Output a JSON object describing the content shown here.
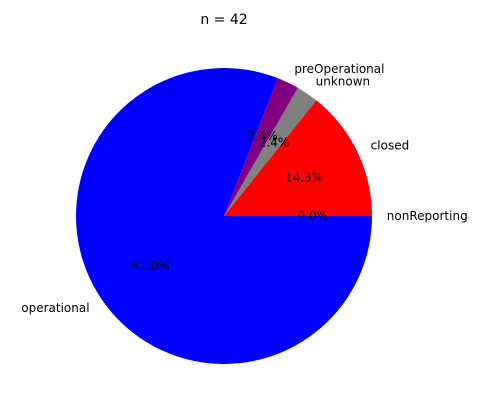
{
  "chart_data": {
    "type": "pie",
    "title": "n = 42",
    "slices": [
      {
        "label": "nonReporting",
        "value": 0.0,
        "pct_label": "0.0%",
        "color": "#ff0000"
      },
      {
        "label": "closed",
        "value": 14.3,
        "pct_label": "14.3%",
        "color": "#ff0000"
      },
      {
        "label": "unknown",
        "value": 2.4,
        "pct_label": "2.4%",
        "color": "#808080"
      },
      {
        "label": "preOperational",
        "value": 2.4,
        "pct_label": "2.4%",
        "color": "#800080"
      },
      {
        "label": "operational",
        "value": 81.0,
        "pct_label": "81.0%",
        "color": "#0000ff"
      }
    ],
    "legend": "none"
  }
}
